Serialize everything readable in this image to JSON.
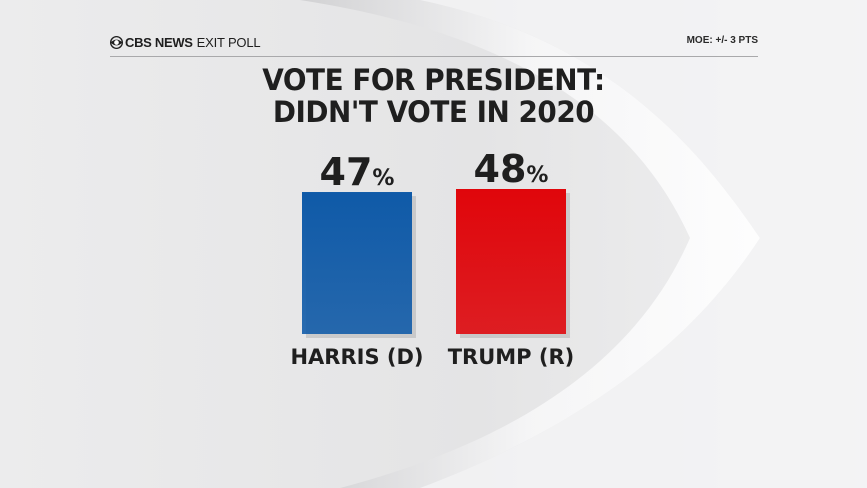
{
  "header": {
    "brand": "CBS NEWS",
    "section": "EXIT POLL",
    "moe": "MOE: +/- 3 PTS"
  },
  "chart_data": {
    "type": "bar",
    "title": "VOTE FOR PRESIDENT:",
    "subtitle": "DIDN'T VOTE IN 2020",
    "categories": [
      "HARRIS (D)",
      "TRUMP (R)"
    ],
    "values": [
      47,
      48
    ],
    "value_labels": [
      "47",
      "48"
    ],
    "value_suffix": "%",
    "colors": [
      "#0f5aa8",
      "#e0060b"
    ],
    "ylim": [
      0,
      48
    ],
    "grid": false,
    "legend": "none"
  }
}
